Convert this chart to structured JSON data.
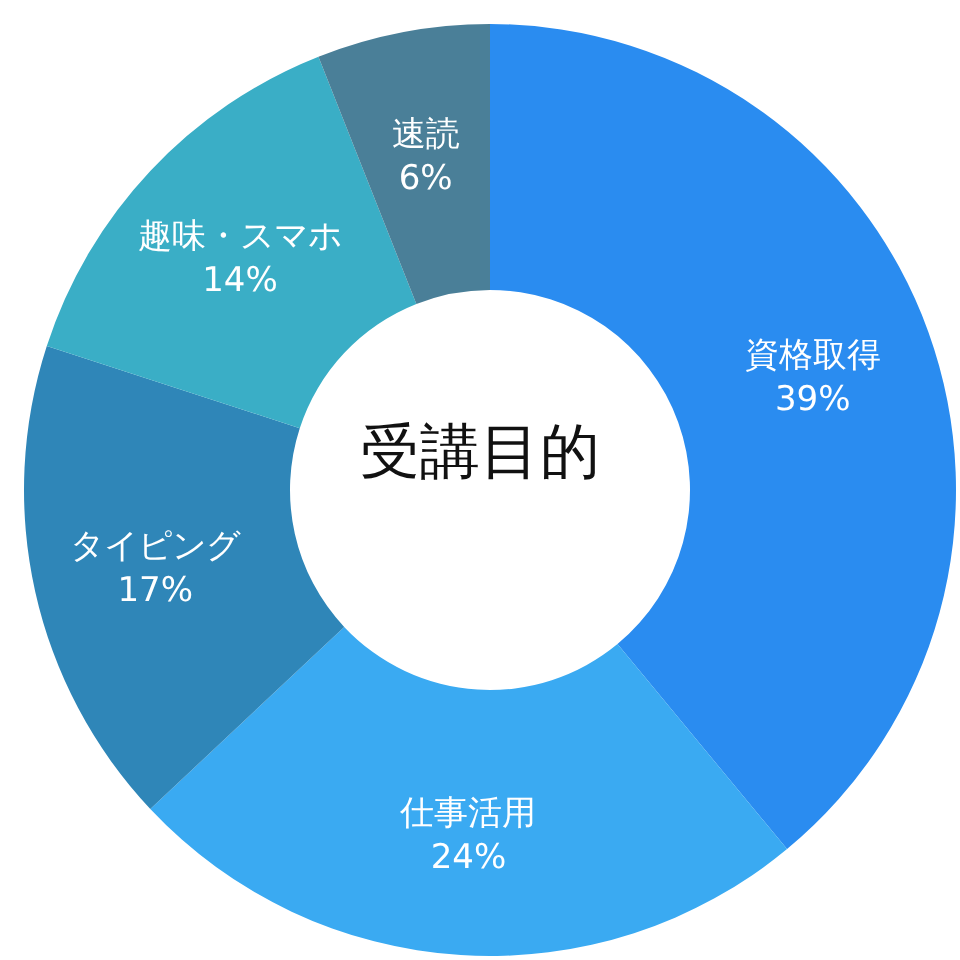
{
  "chart_data": {
    "type": "donut",
    "title": "受講目的",
    "categories": [
      "資格取得",
      "仕事活用",
      "タイピング",
      "趣味・スマホ",
      "速読"
    ],
    "values": [
      39,
      24,
      17,
      14,
      6
    ],
    "value_labels": [
      "39%",
      "24%",
      "17%",
      "14%",
      "6%"
    ],
    "colors": [
      "#2a8cf0",
      "#3aaaf2",
      "#2f86b8",
      "#3aaec6",
      "#4a7f98"
    ]
  }
}
